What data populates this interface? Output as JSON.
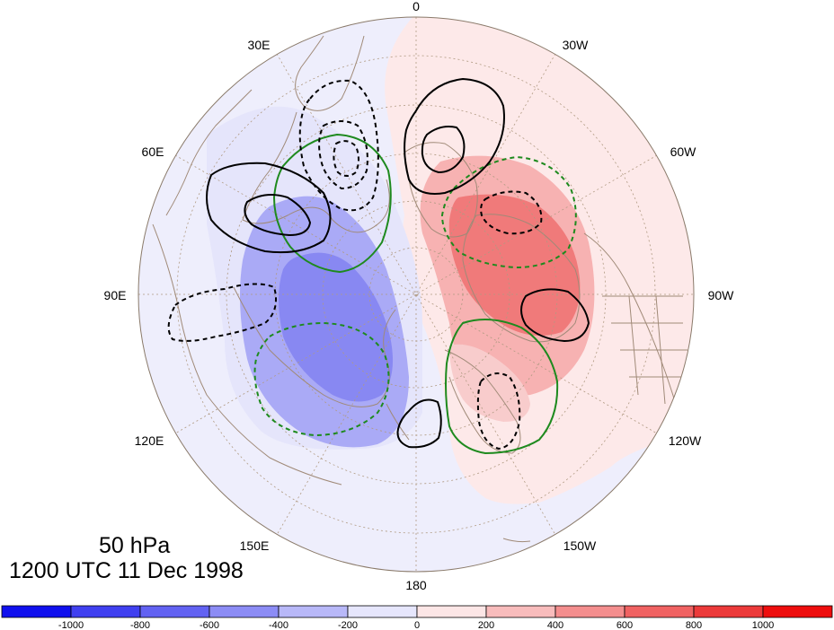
{
  "map": {
    "projection": "north-polar-stereographic",
    "level_label": "50 hPa",
    "time_label": "1200 UTC 11 Dec 1998",
    "longitude_labels": [
      "0",
      "30W",
      "60W",
      "90W",
      "120W",
      "150W",
      "180",
      "150E",
      "120E",
      "90E",
      "60E",
      "30E"
    ],
    "colors": {
      "coastline": "#a08a78",
      "graticule": "#a08a78",
      "contour_positive": "#000000",
      "contour_negative": "#000000",
      "contour_green": "#1e8a1e",
      "background_outside": "#ffffff"
    },
    "shading_anomaly_regions": [
      {
        "sign": "negative",
        "level": -600,
        "location": "northern Siberia / Kara Sea"
      },
      {
        "sign": "negative",
        "level": -400,
        "location": "northern Siberia / Kara Sea"
      },
      {
        "sign": "negative",
        "level": -200,
        "location": "Eurasian sector"
      },
      {
        "sign": "positive",
        "level": 600,
        "location": "Canadian Arctic / Greenland"
      },
      {
        "sign": "positive",
        "level": 400,
        "location": "Canadian Arctic / Alaska"
      },
      {
        "sign": "positive",
        "level": 200,
        "location": "western hemisphere / North Pacific"
      }
    ]
  },
  "colorbar": {
    "ticks": [
      "-1000",
      "-800",
      "-600",
      "-400",
      "-200",
      "0",
      "200",
      "400",
      "600",
      "800",
      "1000"
    ],
    "colors": [
      "#1010ee",
      "#4040f0",
      "#6262f2",
      "#8c8cf5",
      "#b8b8f8",
      "#e6e6fc",
      "#fce6e6",
      "#f8bcbc",
      "#f48e8e",
      "#f06262",
      "#ec3a3a",
      "#ee0e0e"
    ]
  }
}
